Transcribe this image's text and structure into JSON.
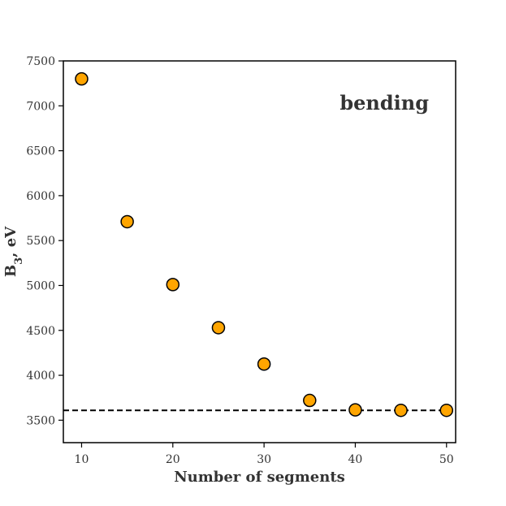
{
  "chart_data": {
    "type": "scatter",
    "title": "",
    "xlabel": "Number of segments",
    "ylabel_main": "B",
    "ylabel_sub": "3",
    "ylabel_rest": ", eV",
    "annotation": "bending",
    "xlim": [
      8,
      51
    ],
    "ylim": [
      3250,
      7500
    ],
    "xticks": [
      10,
      20,
      30,
      40,
      50
    ],
    "yticks": [
      3500,
      4000,
      4500,
      5000,
      5500,
      6000,
      6500,
      7000,
      7500
    ],
    "grid": false,
    "points": [
      {
        "x": 10,
        "y": 7300
      },
      {
        "x": 15,
        "y": 5710
      },
      {
        "x": 20,
        "y": 5010
      },
      {
        "x": 25,
        "y": 4530
      },
      {
        "x": 30,
        "y": 4125
      },
      {
        "x": 35,
        "y": 3720
      },
      {
        "x": 40,
        "y": 3615
      },
      {
        "x": 45,
        "y": 3610
      },
      {
        "x": 50,
        "y": 3610
      }
    ],
    "reference_line": {
      "y": 3610,
      "style": "dashed"
    },
    "colors": {
      "marker_fill": "#FFA500",
      "marker_edge": "#000000",
      "reference_line": "#000000",
      "axes": "#000000",
      "text": "#333333"
    }
  }
}
